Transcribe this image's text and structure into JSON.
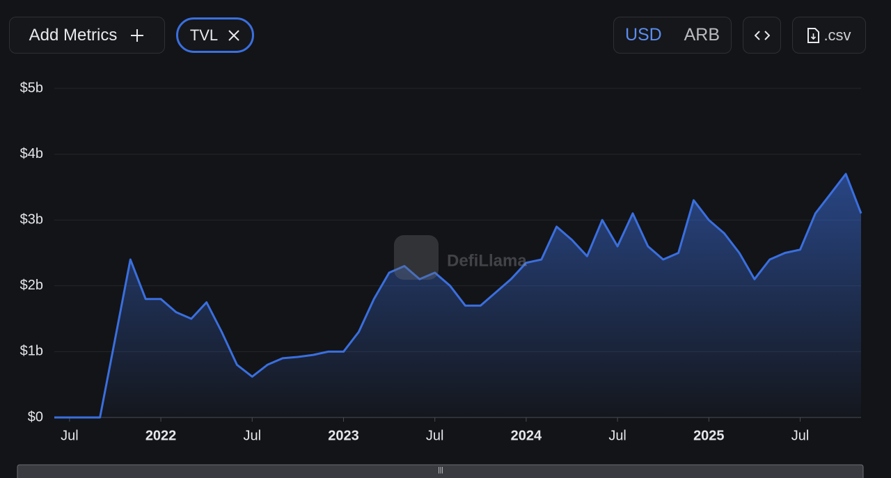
{
  "toolbar": {
    "add_metrics": "Add Metrics",
    "metric": "TVL",
    "currencies": [
      "USD",
      "ARB"
    ],
    "csv": ".csv"
  },
  "chart_data": {
    "type": "area",
    "watermark": "DefiLlama",
    "color": "#3a6fdf",
    "x": [
      "2021-06",
      "2021-07",
      "2021-08",
      "2021-09",
      "2021-10",
      "2021-11",
      "2021-12",
      "2022-01",
      "2022-02",
      "2022-03",
      "2022-04",
      "2022-05",
      "2022-06",
      "2022-07",
      "2022-08",
      "2022-09",
      "2022-10",
      "2022-11",
      "2022-12",
      "2023-01",
      "2023-02",
      "2023-03",
      "2023-04",
      "2023-05",
      "2023-06",
      "2023-07",
      "2023-08",
      "2023-09",
      "2023-10",
      "2023-11",
      "2023-12",
      "2024-01",
      "2024-02",
      "2024-03",
      "2024-04",
      "2024-05",
      "2024-06",
      "2024-07",
      "2024-08",
      "2024-09",
      "2024-10",
      "2024-11",
      "2024-12",
      "2025-01",
      "2025-02",
      "2025-03",
      "2025-04",
      "2025-05",
      "2025-06",
      "2025-07",
      "2025-08",
      "2025-09",
      "2025-10",
      "2025-11"
    ],
    "values": [
      0,
      0,
      0,
      0,
      1.2,
      2.4,
      1.8,
      1.8,
      1.6,
      1.5,
      1.75,
      1.3,
      0.8,
      0.62,
      0.8,
      0.9,
      0.92,
      0.95,
      1.0,
      1.0,
      1.3,
      1.8,
      2.2,
      2.3,
      2.1,
      2.2,
      2.0,
      1.7,
      1.7,
      1.9,
      2.1,
      2.35,
      2.4,
      2.9,
      2.7,
      2.45,
      3.0,
      2.6,
      3.1,
      2.6,
      2.4,
      2.5,
      3.3,
      3.0,
      2.8,
      2.5,
      2.1,
      2.4,
      2.5,
      2.55,
      3.1,
      3.4,
      3.7,
      3.1
    ],
    "xlim": [
      "2021-06",
      "2025-11"
    ],
    "xticks": [
      {
        "value": "2021-07",
        "label": "Jul"
      },
      {
        "value": "2022-01",
        "label": "2022"
      },
      {
        "value": "2022-07",
        "label": "Jul"
      },
      {
        "value": "2023-01",
        "label": "2023"
      },
      {
        "value": "2023-07",
        "label": "Jul"
      },
      {
        "value": "2024-01",
        "label": "2024"
      },
      {
        "value": "2024-07",
        "label": "Jul"
      },
      {
        "value": "2025-01",
        "label": "2025"
      },
      {
        "value": "2025-07",
        "label": "Jul"
      }
    ],
    "ylim": [
      0,
      5
    ],
    "yticks": [
      {
        "value": 0,
        "label": "$0"
      },
      {
        "value": 1,
        "label": "$1b"
      },
      {
        "value": 2,
        "label": "$2b"
      },
      {
        "value": 3,
        "label": "$3b"
      },
      {
        "value": 4,
        "label": "$4b"
      },
      {
        "value": 5,
        "label": "$5b"
      }
    ],
    "grid": true
  }
}
